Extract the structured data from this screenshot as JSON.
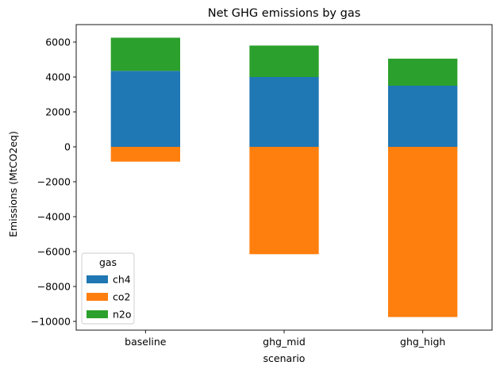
{
  "chart_data": {
    "type": "bar",
    "stacked": true,
    "title": "Net GHG emissions by gas",
    "xlabel": "scenario",
    "ylabel": "Emissions (MtCO2eq)",
    "categories": [
      "baseline",
      "ghg_mid",
      "ghg_high"
    ],
    "series": [
      {
        "name": "ch4",
        "color": "#1f77b4",
        "values": [
          4350,
          4000,
          3500
        ]
      },
      {
        "name": "co2",
        "color": "#ff7f0e",
        "values": [
          -850,
          -6150,
          -9750
        ]
      },
      {
        "name": "n2o",
        "color": "#2ca02c",
        "values": [
          1900,
          1800,
          1550
        ]
      }
    ],
    "ylim": [
      -10500,
      7000
    ],
    "yticks": [
      -10000,
      -8000,
      -6000,
      -4000,
      -2000,
      0,
      2000,
      4000,
      6000
    ],
    "legend": {
      "title": "gas",
      "position": "lower-left"
    },
    "grid": false
  }
}
